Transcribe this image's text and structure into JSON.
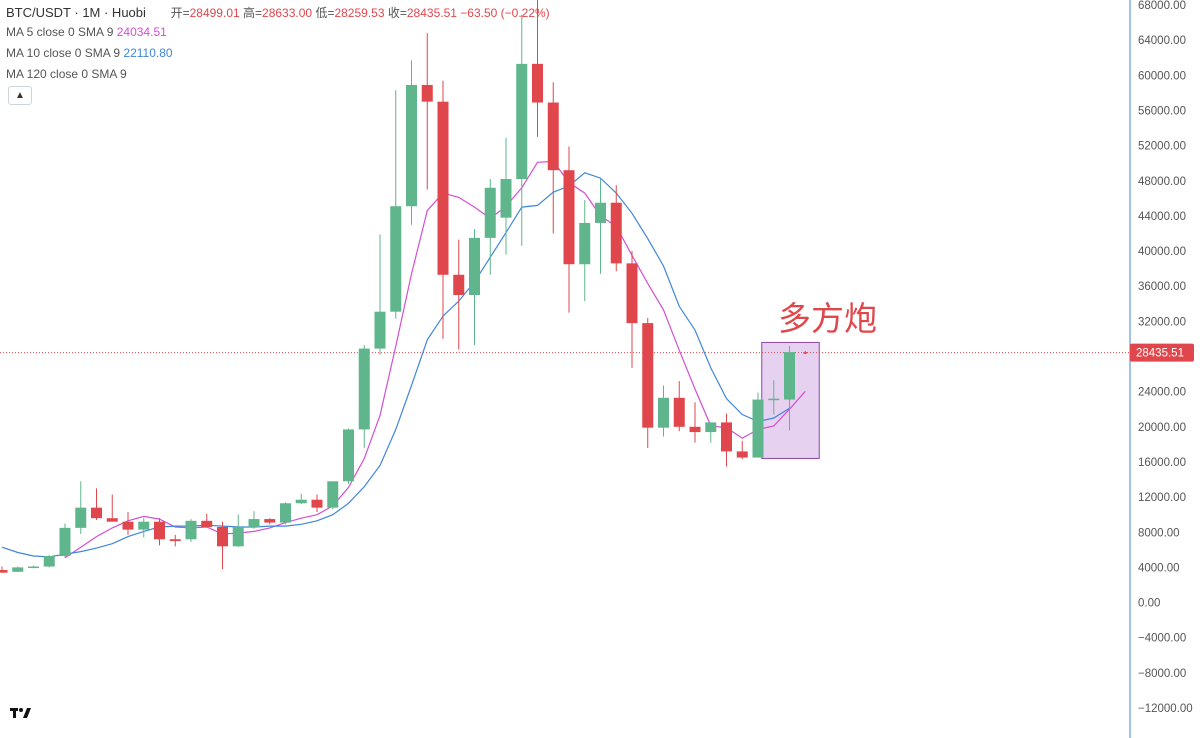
{
  "header": {
    "symbol": "BTC/USDT · 1M · Huobi",
    "open_label": "开=",
    "open_value": "28499.01",
    "high_label": "高=",
    "high_value": "28633.00",
    "low_label": "低=",
    "low_value": "28259.53",
    "close_label": "收=",
    "close_value": "28435.51",
    "change_value": "−63.50 (−0.22%)",
    "ma5_label": "MA 5 close 0 SMA 9",
    "ma5_value": "24034.51",
    "ma10_label": "MA 10 close 0 SMA 9",
    "ma10_value": "22110.80",
    "ma120_label": "MA 120 close 0 SMA 9",
    "collapse_icon": "chevron-up-icon",
    "logo_icon": "tradingview-logo-icon"
  },
  "colors": {
    "up": "#5fb58c",
    "down": "#e0474c",
    "ma5": "#d44fd0",
    "ma10": "#3f86da",
    "axis_line": "#3f86da",
    "highlight_fill": "#e3cdee",
    "highlight_stroke": "#8e44ad"
  },
  "annotation": {
    "text": "多方炮"
  },
  "price_tag": "28435.51",
  "chart_data": {
    "type": "candlestick",
    "y_axis": {
      "min": -12000,
      "max": 68000,
      "step": 4000,
      "position": "right",
      "tick_labels": [
        "68000.00",
        "64000.00",
        "60000.00",
        "56000.00",
        "52000.00",
        "48000.00",
        "44000.00",
        "40000.00",
        "36000.00",
        "32000.00",
        "28000.00",
        "24000.00",
        "20000.00",
        "16000.00",
        "12000.00",
        "8000.00",
        "4000.00",
        "0.00",
        "−4000.00",
        "−8000.00",
        "−12000.00"
      ]
    },
    "grid": false,
    "last_price": 28435.51,
    "candles": [
      {
        "o": 3700,
        "h": 4100,
        "l": 3400,
        "c": 3400
      },
      {
        "o": 3500,
        "h": 4100,
        "l": 3500,
        "c": 4000
      },
      {
        "o": 4000,
        "h": 4200,
        "l": 3900,
        "c": 4100
      },
      {
        "o": 4100,
        "h": 5400,
        "l": 4000,
        "c": 5300
      },
      {
        "o": 5300,
        "h": 9000,
        "l": 5100,
        "c": 8500
      },
      {
        "o": 8500,
        "h": 13800,
        "l": 7800,
        "c": 10800
      },
      {
        "o": 10800,
        "h": 13000,
        "l": 9400,
        "c": 9600
      },
      {
        "o": 9600,
        "h": 12300,
        "l": 9300,
        "c": 9200
      },
      {
        "o": 9200,
        "h": 10300,
        "l": 7700,
        "c": 8300
      },
      {
        "o": 8300,
        "h": 9600,
        "l": 7400,
        "c": 9200
      },
      {
        "o": 9200,
        "h": 9600,
        "l": 6500,
        "c": 7200
      },
      {
        "o": 7200,
        "h": 7700,
        "l": 6400,
        "c": 7000
      },
      {
        "o": 7200,
        "h": 9500,
        "l": 6900,
        "c": 9300
      },
      {
        "o": 9300,
        "h": 10100,
        "l": 8800,
        "c": 8600
      },
      {
        "o": 8600,
        "h": 9200,
        "l": 3800,
        "c": 6400
      },
      {
        "o": 6400,
        "h": 10000,
        "l": 6300,
        "c": 8600
      },
      {
        "o": 8600,
        "h": 10400,
        "l": 8400,
        "c": 9500
      },
      {
        "o": 9500,
        "h": 9600,
        "l": 8900,
        "c": 9100
      },
      {
        "o": 9100,
        "h": 11400,
        "l": 8900,
        "c": 11300
      },
      {
        "o": 11300,
        "h": 12400,
        "l": 11200,
        "c": 11700
      },
      {
        "o": 11700,
        "h": 12300,
        "l": 10300,
        "c": 10800
      },
      {
        "o": 10800,
        "h": 13800,
        "l": 10600,
        "c": 13800
      },
      {
        "o": 13800,
        "h": 19800,
        "l": 13500,
        "c": 19700
      },
      {
        "o": 19700,
        "h": 29300,
        "l": 17600,
        "c": 28900
      },
      {
        "o": 28900,
        "h": 41900,
        "l": 28200,
        "c": 33100
      },
      {
        "o": 33100,
        "h": 58300,
        "l": 32300,
        "c": 45100
      },
      {
        "o": 45100,
        "h": 61700,
        "l": 43000,
        "c": 58900
      },
      {
        "o": 58900,
        "h": 64800,
        "l": 47000,
        "c": 57000
      },
      {
        "o": 57000,
        "h": 59400,
        "l": 30000,
        "c": 37300
      },
      {
        "o": 37300,
        "h": 41300,
        "l": 28800,
        "c": 35000
      },
      {
        "o": 35000,
        "h": 42500,
        "l": 29300,
        "c": 41500
      },
      {
        "o": 41500,
        "h": 48200,
        "l": 37300,
        "c": 47200
      },
      {
        "o": 43800,
        "h": 52900,
        "l": 39600,
        "c": 48200
      },
      {
        "o": 48200,
        "h": 66900,
        "l": 40600,
        "c": 61300
      },
      {
        "o": 61300,
        "h": 69000,
        "l": 53000,
        "c": 56900
      },
      {
        "o": 56900,
        "h": 59200,
        "l": 42000,
        "c": 49200
      },
      {
        "o": 49200,
        "h": 51900,
        "l": 33000,
        "c": 38500
      },
      {
        "o": 38500,
        "h": 45800,
        "l": 34300,
        "c": 43200
      },
      {
        "o": 43200,
        "h": 48200,
        "l": 37400,
        "c": 45500
      },
      {
        "o": 45500,
        "h": 47500,
        "l": 37700,
        "c": 38600
      },
      {
        "o": 38600,
        "h": 40000,
        "l": 26700,
        "c": 31800
      },
      {
        "o": 31800,
        "h": 32400,
        "l": 17600,
        "c": 19900
      },
      {
        "o": 19900,
        "h": 24700,
        "l": 18900,
        "c": 23300
      },
      {
        "o": 23300,
        "h": 25200,
        "l": 19500,
        "c": 20000
      },
      {
        "o": 20000,
        "h": 22800,
        "l": 18200,
        "c": 19400
      },
      {
        "o": 19400,
        "h": 20500,
        "l": 18200,
        "c": 20500
      },
      {
        "o": 20500,
        "h": 21500,
        "l": 15500,
        "c": 17200
      },
      {
        "o": 17200,
        "h": 18400,
        "l": 16300,
        "c": 16500
      },
      {
        "o": 16500,
        "h": 23900,
        "l": 16500,
        "c": 23100
      },
      {
        "o": 23100,
        "h": 25300,
        "l": 21400,
        "c": 23200
      },
      {
        "o": 23100,
        "h": 29200,
        "l": 19600,
        "c": 28500
      },
      {
        "o": 28499.01,
        "h": 28633.0,
        "l": 28259.53,
        "c": 28435.51
      }
    ],
    "series": [
      {
        "name": "MA 5 close 0 SMA 9",
        "values": [
          null,
          null,
          null,
          null,
          5100,
          6300,
          7500,
          8500,
          9300,
          9800,
          9500,
          8600,
          8500,
          8600,
          7800,
          7900,
          8100,
          8500,
          9100,
          9600,
          10000,
          11000,
          13100,
          16400,
          21300,
          29200,
          37400,
          44600,
          46600,
          46100,
          45000,
          43700,
          45100,
          47200,
          50100,
          50200,
          47800,
          46600,
          44000,
          42800,
          39500,
          36300,
          33300,
          28700,
          24300,
          20100,
          19900,
          18700,
          19700,
          20100,
          22000,
          24034.51
        ]
      },
      {
        "name": "MA 10 close 0 SMA 9",
        "values": [
          6300,
          5700,
          5300,
          5200,
          5500,
          5800,
          6200,
          6700,
          7500,
          8100,
          8600,
          8700,
          8700,
          8800,
          8700,
          8600,
          8600,
          8700,
          8700,
          8900,
          9300,
          10000,
          11300,
          13200,
          15600,
          19700,
          24700,
          29900,
          32600,
          34300,
          36500,
          39300,
          42100,
          45000,
          45200,
          46700,
          47400,
          48900,
          48300,
          46600,
          44300,
          41400,
          38300,
          33700,
          31000,
          26700,
          23200,
          21400,
          20600,
          21000,
          22110.8
        ]
      }
    ]
  }
}
